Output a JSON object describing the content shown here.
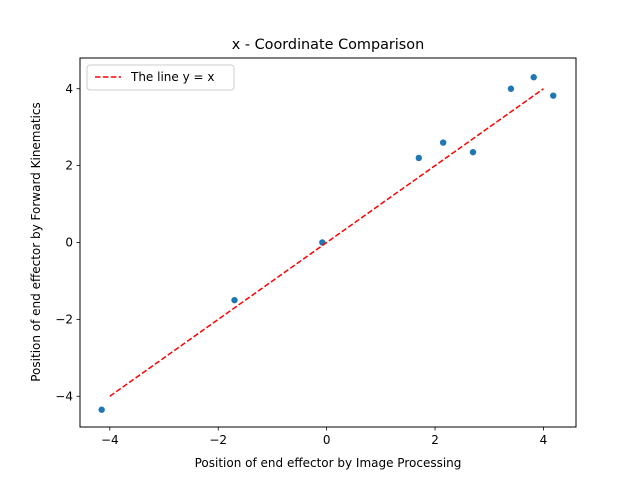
{
  "chart_data": {
    "type": "scatter",
    "title": "x - Coordinate Comparison",
    "xlabel": "Position of end effector by Image Processing",
    "ylabel": "Position of end effector by Forward Kinematics",
    "xlim": [
      -4.55,
      4.6
    ],
    "ylim": [
      -4.8,
      4.8
    ],
    "xticks": [
      -4,
      -2,
      0,
      2,
      4
    ],
    "yticks": [
      -4,
      -2,
      0,
      2,
      4
    ],
    "grid": false,
    "legend_position": "top-left",
    "series": [
      {
        "type": "scatter",
        "color": "#1f77b4",
        "points": [
          {
            "x": -4.15,
            "y": -4.35
          },
          {
            "x": -1.7,
            "y": -1.5
          },
          {
            "x": -0.08,
            "y": 0.0
          },
          {
            "x": 1.7,
            "y": 2.2
          },
          {
            "x": 2.15,
            "y": 2.6
          },
          {
            "x": 2.7,
            "y": 2.35
          },
          {
            "x": 3.4,
            "y": 4.0
          },
          {
            "x": 3.82,
            "y": 4.3
          },
          {
            "x": 4.18,
            "y": 3.82
          }
        ]
      },
      {
        "type": "line",
        "name": "The line y = x",
        "color": "#ff0000",
        "dashed": true,
        "points": [
          {
            "x": -4,
            "y": -4
          },
          {
            "x": 4,
            "y": 4
          }
        ]
      }
    ]
  }
}
